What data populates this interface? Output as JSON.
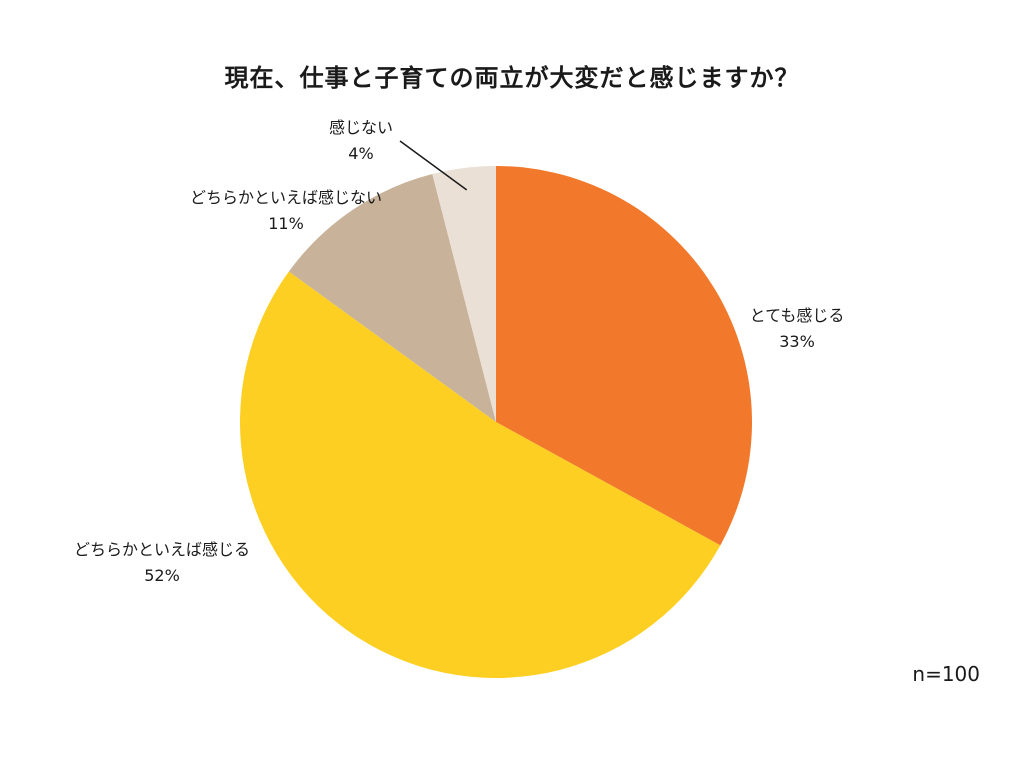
{
  "chart_data": {
    "type": "pie",
    "title": "現在、仕事と子育ての両立が大変だと感じますか？",
    "note": "n=100",
    "slices": [
      {
        "label": "とても感じる",
        "value": 33,
        "value_label": "33%",
        "color": "#F2792B"
      },
      {
        "label": "どちらかといえば感じる",
        "value": 52,
        "value_label": "52%",
        "color": "#FCCF22"
      },
      {
        "label": "どちらかといえば感じない",
        "value": 11,
        "value_label": "11%",
        "color": "#C8B29A"
      },
      {
        "label": "感じない",
        "value": 4,
        "value_label": "4%",
        "color": "#EBE0D6"
      }
    ]
  }
}
